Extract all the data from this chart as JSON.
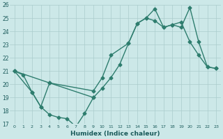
{
  "xlabel": "Humidex (Indice chaleur)",
  "bg_color": "#cce8e8",
  "grid_color": "#aacccc",
  "line_color": "#2e7d6e",
  "xlim": [
    -0.5,
    23.5
  ],
  "ylim": [
    17,
    26
  ],
  "xtick_labels": [
    "0",
    "1",
    "2",
    "3",
    "4",
    "5",
    "6",
    "7",
    "8",
    "9",
    "10",
    "11",
    "12",
    "13",
    "14",
    "15",
    "16",
    "17",
    "18",
    "19",
    "20",
    "21",
    "22",
    "23"
  ],
  "xtick_positions": [
    0,
    1,
    2,
    3,
    4,
    5,
    6,
    7,
    8,
    9,
    10,
    11,
    12,
    13,
    14,
    15,
    16,
    17,
    18,
    19,
    20,
    21,
    22,
    23
  ],
  "ytick_positions": [
    17,
    18,
    19,
    20,
    21,
    22,
    23,
    24,
    25,
    26
  ],
  "series_top_x": [
    0,
    1,
    2,
    3,
    4,
    9,
    10,
    11,
    13,
    14,
    15,
    16,
    17,
    18,
    19,
    20,
    21,
    22,
    23
  ],
  "series_top_y": [
    21,
    20.7,
    19.4,
    18.3,
    20.1,
    19.5,
    20.5,
    22.2,
    23.1,
    24.6,
    25.0,
    25.7,
    24.3,
    24.5,
    24.3,
    25.8,
    23.2,
    21.3,
    21.2
  ],
  "series_mid_x": [
    0,
    4,
    9,
    10,
    11,
    12,
    13,
    14,
    15,
    16,
    17,
    18,
    19,
    20,
    21,
    22,
    23
  ],
  "series_mid_y": [
    21,
    20.1,
    19.0,
    19.7,
    20.5,
    21.5,
    23.1,
    24.6,
    25.0,
    24.8,
    24.3,
    24.5,
    24.7,
    23.2,
    22.2,
    21.3,
    21.2
  ],
  "series_bot_x": [
    0,
    2,
    3,
    4,
    5,
    6,
    7,
    8,
    9
  ],
  "series_bot_y": [
    21,
    19.4,
    18.3,
    17.7,
    17.5,
    17.4,
    16.8,
    17.8,
    19.0
  ]
}
